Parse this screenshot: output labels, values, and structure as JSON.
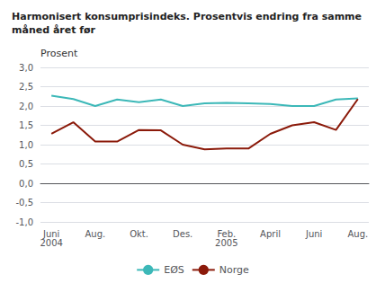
{
  "chart_data": {
    "type": "line",
    "title": "Harmonisert konsumprisindeks. Prosentvis endring fra samme\nmåned året før",
    "ylabel": "Prosent",
    "categories": [
      "Juni\n2004",
      null,
      "Aug.",
      null,
      "Okt.",
      null,
      "Des.",
      null,
      "Feb.\n2005",
      null,
      "April",
      null,
      "Juni",
      null,
      "Aug."
    ],
    "series": [
      {
        "name": "EØS",
        "color": "#3cb8b8",
        "values": [
          2.27,
          2.18,
          2.0,
          2.17,
          2.1,
          2.17,
          2.0,
          2.07,
          2.08,
          2.07,
          2.05,
          2.0,
          2.0,
          2.17,
          2.2
        ]
      },
      {
        "name": "Norge",
        "color": "#8b1a0a",
        "values": [
          1.28,
          1.58,
          1.08,
          1.08,
          1.38,
          1.37,
          1.0,
          0.88,
          0.9,
          0.9,
          1.28,
          1.5,
          1.58,
          1.38,
          2.18
        ]
      }
    ],
    "ylim": [
      -1.0,
      3.0
    ],
    "yticks": [
      {
        "value": -1.0,
        "label": "-1,0"
      },
      {
        "value": -0.5,
        "label": "-0,5"
      },
      {
        "value": 0.0,
        "label": "0,0"
      },
      {
        "value": 0.5,
        "label": "0,5"
      },
      {
        "value": 1.0,
        "label": "1,0"
      },
      {
        "value": 1.5,
        "label": "1,5"
      },
      {
        "value": 2.0,
        "label": "2,0"
      },
      {
        "value": 2.5,
        "label": "2,5"
      },
      {
        "value": 3.0,
        "label": "3,0"
      }
    ],
    "grid": true,
    "legend": "bottom"
  }
}
